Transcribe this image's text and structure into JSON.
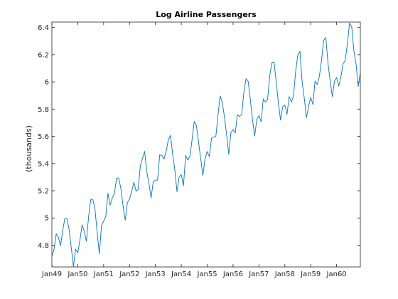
{
  "chart_data": {
    "type": "line",
    "title": "Log Airline Passengers",
    "xlabel": "",
    "ylabel": "(thousands)",
    "x_ticks": [
      "Jan49",
      "Jan50",
      "Jan51",
      "Jan52",
      "Jan53",
      "Jan54",
      "Jan55",
      "Jan56",
      "Jan57",
      "Jan58",
      "Jan59",
      "Jan60"
    ],
    "y_ticks": [
      "4.8",
      "5",
      "5.2",
      "5.4",
      "5.6",
      "5.8",
      "6",
      "6.2",
      "6.4"
    ],
    "y_tick_values": [
      4.8,
      5.0,
      5.2,
      5.4,
      5.6,
      5.8,
      6.0,
      6.2,
      6.4
    ],
    "ylim": [
      4.64,
      6.44
    ],
    "xlim": [
      "Jan49",
      "Dec60"
    ],
    "grid": false,
    "legend": "none",
    "line_color": "#0072BD",
    "series": [
      {
        "x": [
          "Jan49",
          "Feb49",
          "Mar49",
          "Apr49",
          "May49",
          "Jun49",
          "Jul49",
          "Aug49",
          "Sep49",
          "Oct49",
          "Nov49",
          "Dec49",
          "Jan50",
          "Feb50",
          "Mar50",
          "Apr50",
          "May50",
          "Jun50",
          "Jul50",
          "Aug50",
          "Sep50",
          "Oct50",
          "Nov50",
          "Dec50",
          "Jan51",
          "Feb51",
          "Mar51",
          "Apr51",
          "May51",
          "Jun51",
          "Jul51",
          "Aug51",
          "Sep51",
          "Oct51",
          "Nov51",
          "Dec51",
          "Jan52",
          "Feb52",
          "Mar52",
          "Apr52",
          "May52",
          "Jun52",
          "Jul52",
          "Aug52",
          "Sep52",
          "Oct52",
          "Nov52",
          "Dec52",
          "Jan53",
          "Feb53",
          "Mar53",
          "Apr53",
          "May53",
          "Jun53",
          "Jul53",
          "Aug53",
          "Sep53",
          "Oct53",
          "Nov53",
          "Dec53",
          "Jan54",
          "Feb54",
          "Mar54",
          "Apr54",
          "May54",
          "Jun54",
          "Jul54",
          "Aug54",
          "Sep54",
          "Oct54",
          "Nov54",
          "Dec54",
          "Jan55",
          "Feb55",
          "Mar55",
          "Apr55",
          "May55",
          "Jun55",
          "Jul55",
          "Aug55",
          "Sep55",
          "Oct55",
          "Nov55",
          "Dec55",
          "Jan56",
          "Feb56",
          "Mar56",
          "Apr56",
          "May56",
          "Jun56",
          "Jul56",
          "Aug56",
          "Sep56",
          "Oct56",
          "Nov56",
          "Dec56",
          "Jan57",
          "Feb57",
          "Mar57",
          "Apr57",
          "May57",
          "Jun57",
          "Jul57",
          "Aug57",
          "Sep57",
          "Oct57",
          "Nov57",
          "Dec57",
          "Jan58",
          "Feb58",
          "Mar58",
          "Apr58",
          "May58",
          "Jun58",
          "Jul58",
          "Aug58",
          "Sep58",
          "Oct58",
          "Nov58",
          "Dec58",
          "Jan59",
          "Feb59",
          "Mar59",
          "Apr59",
          "May59",
          "Jun59",
          "Jul59",
          "Aug59",
          "Sep59",
          "Oct59",
          "Nov59",
          "Dec59",
          "Jan60",
          "Feb60",
          "Mar60",
          "Apr60",
          "May60",
          "Jun60",
          "Jul60",
          "Aug60",
          "Sep60",
          "Oct60",
          "Nov60",
          "Dec60"
        ],
        "values": [
          4.718,
          4.771,
          4.883,
          4.86,
          4.796,
          4.905,
          4.997,
          4.997,
          4.913,
          4.779,
          4.644,
          4.771,
          4.745,
          4.836,
          4.949,
          4.905,
          4.828,
          5.004,
          5.136,
          5.136,
          5.063,
          4.891,
          4.736,
          4.942,
          4.977,
          5.011,
          5.182,
          5.094,
          5.147,
          5.182,
          5.293,
          5.293,
          5.215,
          5.088,
          4.984,
          5.112,
          5.142,
          5.193,
          5.263,
          5.198,
          5.209,
          5.384,
          5.438,
          5.489,
          5.342,
          5.253,
          5.147,
          5.268,
          5.278,
          5.278,
          5.464,
          5.46,
          5.434,
          5.493,
          5.576,
          5.606,
          5.468,
          5.352,
          5.193,
          5.303,
          5.318,
          5.236,
          5.46,
          5.425,
          5.455,
          5.576,
          5.71,
          5.68,
          5.557,
          5.434,
          5.313,
          5.434,
          5.489,
          5.451,
          5.587,
          5.595,
          5.598,
          5.753,
          5.897,
          5.849,
          5.743,
          5.613,
          5.468,
          5.628,
          5.649,
          5.624,
          5.759,
          5.746,
          5.762,
          5.924,
          6.023,
          6.004,
          5.872,
          5.724,
          5.602,
          5.724,
          5.753,
          5.707,
          5.875,
          5.852,
          5.872,
          6.045,
          6.142,
          6.146,
          6.001,
          5.849,
          5.72,
          5.817,
          5.829,
          5.762,
          5.892,
          5.852,
          5.894,
          6.075,
          6.196,
          6.225,
          6.001,
          5.883,
          5.737,
          5.82,
          5.886,
          5.835,
          6.006,
          5.981,
          6.04,
          6.157,
          6.306,
          6.326,
          6.138,
          6.009,
          5.892,
          6.004,
          6.033,
          5.969,
          6.038,
          6.133,
          6.157,
          6.282,
          6.433,
          6.407,
          6.23,
          6.133,
          5.966,
          6.068
        ]
      }
    ]
  }
}
